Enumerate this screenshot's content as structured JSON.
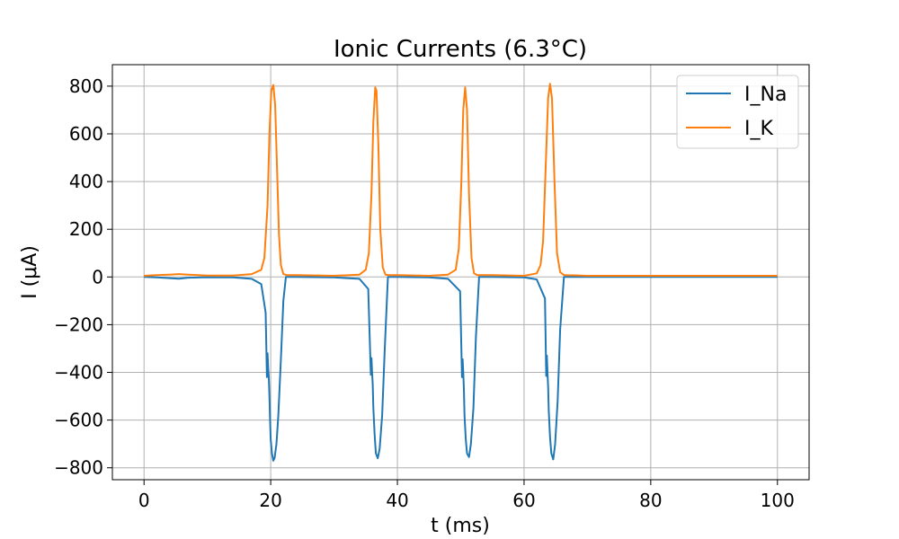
{
  "chart_data": {
    "type": "line",
    "title": "Ionic Currents (6.3°C)",
    "xlabel": "t (ms)",
    "ylabel": "I (μA)",
    "xlim": [
      -5,
      105
    ],
    "ylim": [
      -850,
      890
    ],
    "xticks": [
      0,
      20,
      40,
      60,
      80,
      100
    ],
    "xtick_labels": [
      "0",
      "20",
      "40",
      "60",
      "80",
      "100"
    ],
    "yticks": [
      -800,
      -600,
      -400,
      -200,
      0,
      200,
      400,
      600,
      800
    ],
    "ytick_labels": [
      "−800",
      "−600",
      "−400",
      "−200",
      "0",
      "200",
      "400",
      "600",
      "800"
    ],
    "grid": true,
    "legend_position": "top-right",
    "series": [
      {
        "name": "I_Na",
        "color": "#1f77b4",
        "x": [
          0,
          2,
          4,
          5.5,
          7,
          10,
          14,
          17,
          18.5,
          19.2,
          19.4,
          19.5,
          19.6,
          19.7,
          19.8,
          19.9,
          20.0,
          20.2,
          20.4,
          20.6,
          20.9,
          21.2,
          21.6,
          22.0,
          22.4,
          24,
          30,
          34,
          35.4,
          35.8,
          35.9,
          36.0,
          36.1,
          36.2,
          36.4,
          36.6,
          36.9,
          37.2,
          37.6,
          38.0,
          38.5,
          40,
          45,
          48,
          49.9,
          50.2,
          50.3,
          50.4,
          50.5,
          50.6,
          50.8,
          51.0,
          51.3,
          51.6,
          52.0,
          52.4,
          52.9,
          55,
          60,
          62,
          63.3,
          63.5,
          63.6,
          63.7,
          63.8,
          63.9,
          64.1,
          64.3,
          64.6,
          64.9,
          65.3,
          65.7,
          66.3,
          70,
          80,
          90,
          100
        ],
        "y": [
          0,
          -2,
          -5,
          -7,
          -3,
          -1,
          -2,
          -8,
          -30,
          -150,
          -420,
          -320,
          -380,
          -420,
          -500,
          -600,
          -680,
          -740,
          -770,
          -760,
          -700,
          -580,
          -350,
          -100,
          0,
          0,
          -2,
          -8,
          -50,
          -410,
          -340,
          -400,
          -450,
          -550,
          -660,
          -740,
          -760,
          -720,
          -580,
          -300,
          0,
          0,
          -2,
          -8,
          -60,
          -420,
          -345,
          -400,
          -470,
          -580,
          -680,
          -740,
          -755,
          -700,
          -550,
          -250,
          0,
          0,
          -2,
          -10,
          -90,
          -415,
          -330,
          -400,
          -460,
          -560,
          -670,
          -740,
          -765,
          -700,
          -520,
          -220,
          0,
          0,
          0,
          0,
          0
        ]
      },
      {
        "name": "I_K",
        "color": "#ff7f0e",
        "x": [
          0,
          2,
          4,
          5.5,
          7,
          10,
          14,
          17,
          18.5,
          19.0,
          19.5,
          19.8,
          20.1,
          20.4,
          20.7,
          21.0,
          21.3,
          21.6,
          22.0,
          22.5,
          24,
          30,
          34,
          35.0,
          35.5,
          35.9,
          36.2,
          36.5,
          36.7,
          37.0,
          37.3,
          37.7,
          38.1,
          38.6,
          40,
          45,
          48,
          49.2,
          49.7,
          50.1,
          50.4,
          50.7,
          51.0,
          51.3,
          51.7,
          52.1,
          52.6,
          55,
          60,
          62,
          62.6,
          63.0,
          63.4,
          63.8,
          64.1,
          64.4,
          64.8,
          65.2,
          65.7,
          66.3,
          70,
          80,
          90,
          100
        ],
        "y": [
          5,
          8,
          10,
          12,
          10,
          6,
          6,
          12,
          30,
          80,
          300,
          600,
          780,
          805,
          720,
          450,
          180,
          50,
          12,
          8,
          8,
          5,
          10,
          30,
          100,
          350,
          650,
          795,
          780,
          550,
          200,
          40,
          10,
          8,
          8,
          5,
          10,
          30,
          120,
          400,
          700,
          795,
          700,
          350,
          80,
          15,
          8,
          8,
          5,
          15,
          50,
          150,
          450,
          750,
          810,
          750,
          400,
          100,
          20,
          8,
          5,
          5,
          5,
          5
        ]
      }
    ]
  }
}
